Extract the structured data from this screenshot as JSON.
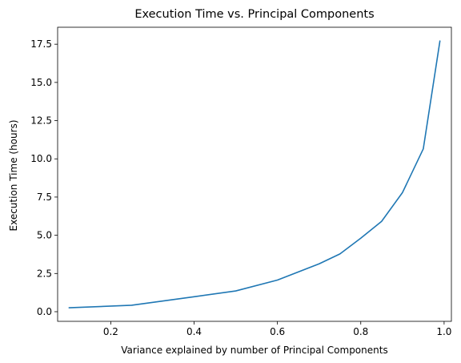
{
  "chart_data": {
    "type": "line",
    "title": "Execution Time vs. Principal Components",
    "xlabel": "Variance explained by number of Principal Components",
    "ylabel": "Execution Time (hours)",
    "xlim": [
      0.0725,
      1.0175
    ],
    "ylim": [
      -0.63,
      18.61
    ],
    "xticks": [
      0.2,
      0.4,
      0.6,
      0.8,
      1.0
    ],
    "xtick_labels": [
      "0.2",
      "0.4",
      "0.6",
      "0.8",
      "1.0"
    ],
    "yticks": [
      0.0,
      2.5,
      5.0,
      7.5,
      10.0,
      12.5,
      15.0,
      17.5
    ],
    "ytick_labels": [
      "0.0",
      "2.5",
      "5.0",
      "7.5",
      "10.0",
      "12.5",
      "15.0",
      "17.5"
    ],
    "grid": false,
    "series": [
      {
        "color": "#1f77b4",
        "x": [
          0.1,
          0.25,
          0.4,
          0.5,
          0.6,
          0.7,
          0.75,
          0.8,
          0.85,
          0.9,
          0.95,
          0.99
        ],
        "y": [
          0.26,
          0.42,
          0.98,
          1.36,
          2.07,
          3.13,
          3.78,
          4.81,
          5.91,
          7.79,
          10.65,
          17.71
        ]
      }
    ]
  }
}
